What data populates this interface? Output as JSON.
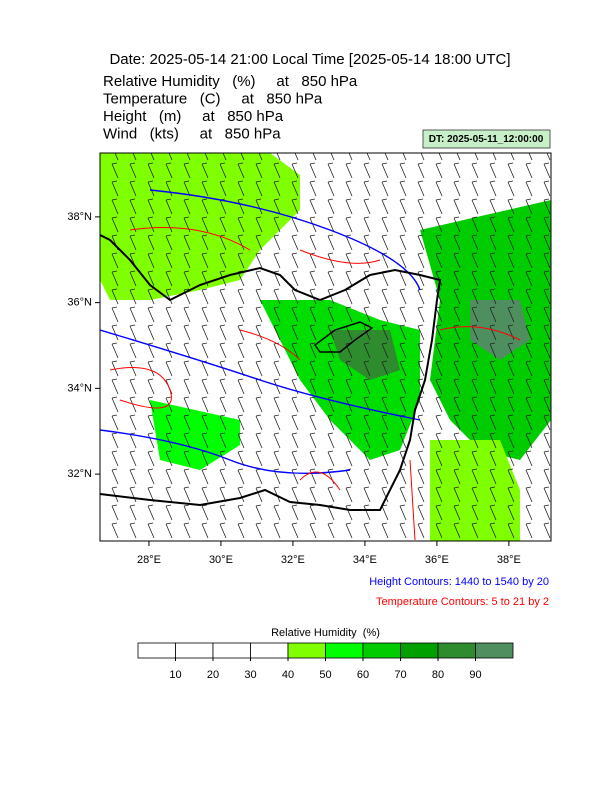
{
  "header": {
    "title": "Date: 2025-05-14  21:00 Local Time [2025-05-14  18:00 UTC]",
    "fields": [
      "Relative Humidity   (%)     at   850 hPa",
      "Temperature   (C)     at   850 hPa",
      "Height   (m)     at   850 hPa",
      "Wind   (kts)     at   850 hPa"
    ],
    "dt_label": "DT: 2025-05-11_12:00:00"
  },
  "map": {
    "xlim": [
      26.64,
      39.17
    ],
    "ylim": [
      30.44,
      39.49
    ],
    "xticks": [
      {
        "value": 28,
        "label": "28°E"
      },
      {
        "value": 30,
        "label": "30°E"
      },
      {
        "value": 32,
        "label": "32°E"
      },
      {
        "value": 34,
        "label": "34°E"
      },
      {
        "value": 36,
        "label": "36°E"
      },
      {
        "value": 38,
        "label": "38°E"
      }
    ],
    "yticks": [
      {
        "value": 32,
        "label": "32°N"
      },
      {
        "value": 34,
        "label": "34°N"
      },
      {
        "value": 36,
        "label": "36°N"
      },
      {
        "value": 38,
        "label": "38°N"
      }
    ]
  },
  "contour_notes": [
    {
      "text": "Height Contours: 1440 to 1540 by 20",
      "color": "#0000ff"
    },
    {
      "text": "Temperature Contours: 5 to 21 by 2",
      "color": "#ff0000"
    }
  ],
  "colorbar": {
    "title": "Relative Humidity  (%)",
    "ticks": [
      10,
      20,
      30,
      40,
      50,
      60,
      70,
      80,
      90
    ],
    "colors": [
      "#ffffff",
      "#ffffff",
      "#ffffff",
      "#ffffff",
      "#80ff00",
      "#00ff00",
      "#00cc00",
      "#00a000",
      "#2e8b2e",
      "#4f8f5f"
    ]
  }
}
